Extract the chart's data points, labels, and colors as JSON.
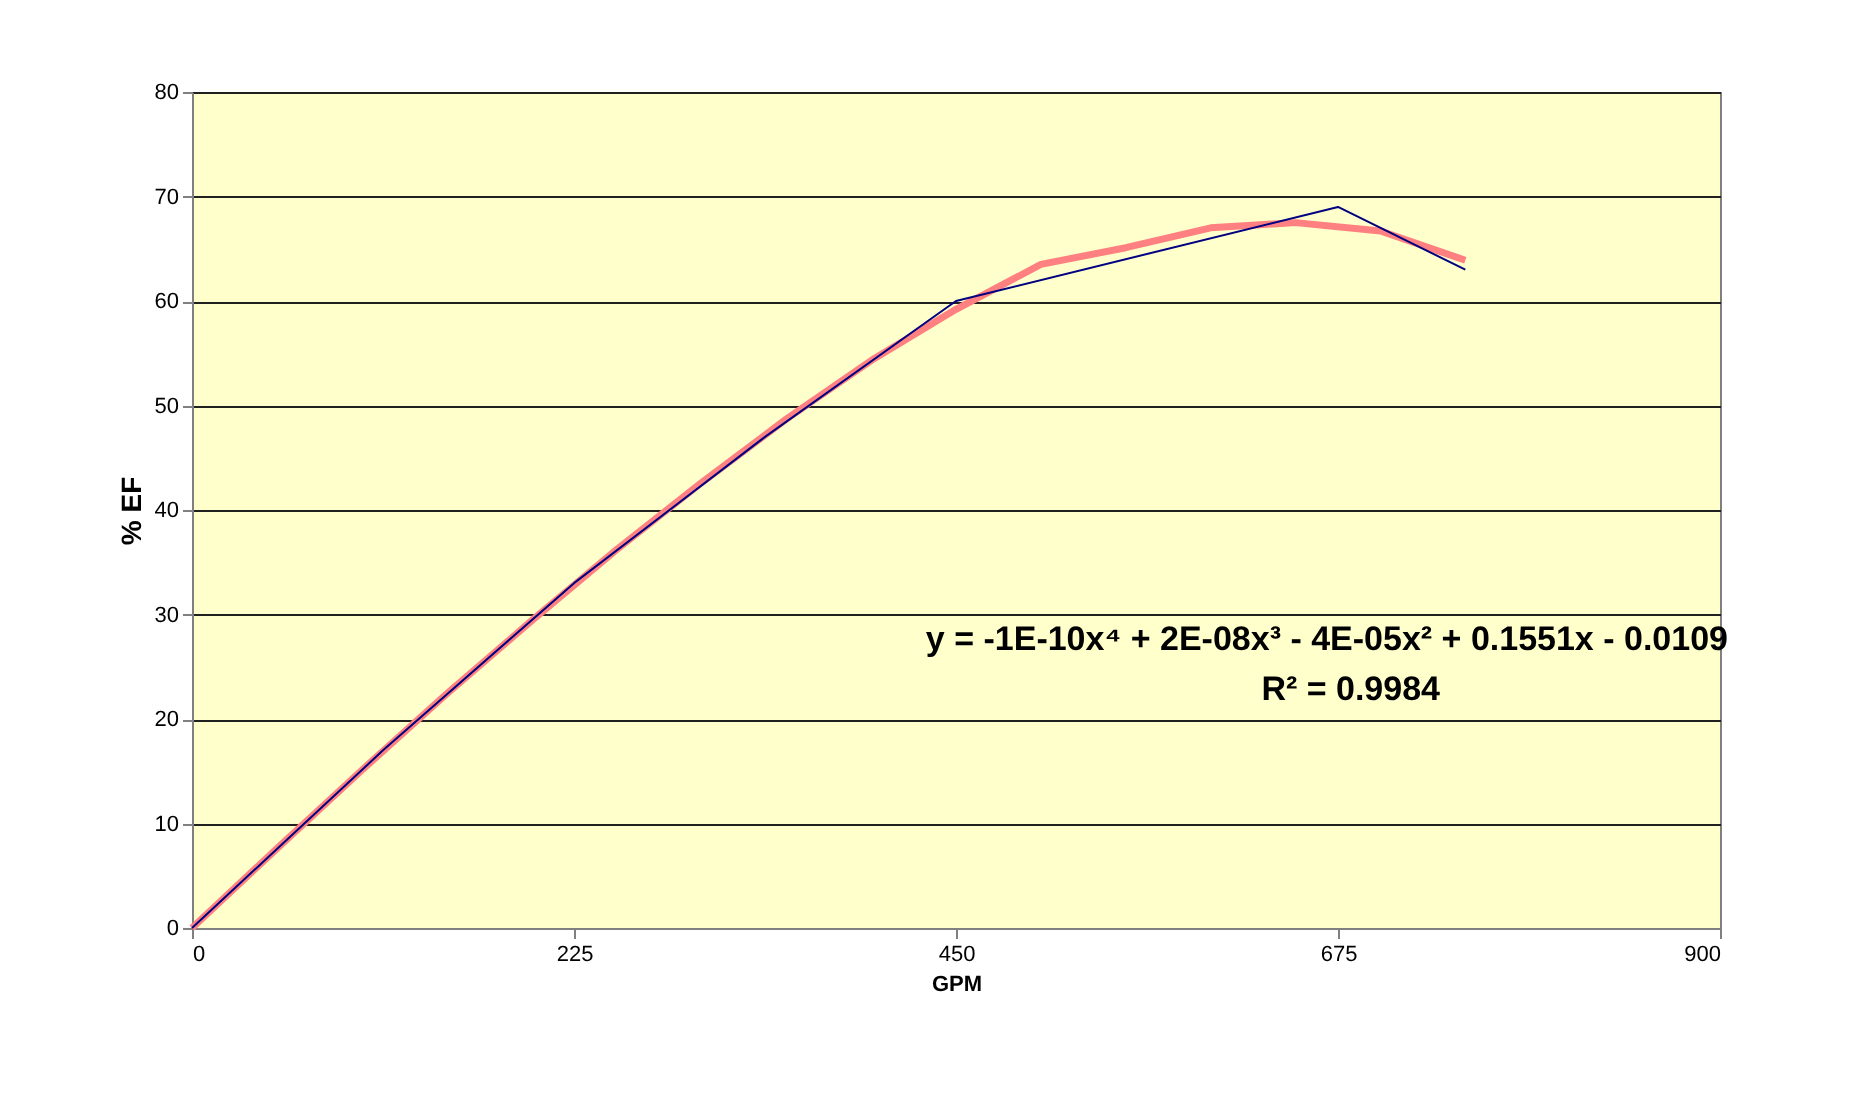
{
  "chart_data": {
    "type": "line",
    "xlabel": "GPM",
    "ylabel": "% EF",
    "xlim": [
      0,
      900
    ],
    "xticks": [
      0,
      225,
      450,
      675,
      900
    ],
    "ylim": [
      0,
      80
    ],
    "yticks": [
      0,
      10,
      20,
      30,
      40,
      50,
      60,
      70,
      80
    ],
    "grid": "y",
    "marker": "none",
    "line_style": "solid",
    "series": [
      {
        "color": "#000080",
        "x": [
          0,
          112.5,
          225,
          337.5,
          450,
          675,
          750
        ],
        "values": [
          0,
          17,
          33,
          47,
          60,
          69,
          63
        ]
      },
      {
        "color": "#ff8080",
        "x": [
          0,
          50,
          100,
          150,
          200,
          250,
          300,
          350,
          400,
          450,
          500,
          550,
          600,
          650,
          700,
          750
        ],
        "values": [
          0,
          7.6,
          15.1,
          22.4,
          29.4,
          36.2,
          42.6,
          48.7,
          54.3,
          59.2,
          63.5,
          65.1,
          67.0,
          67.5,
          66.7,
          63.9
        ]
      }
    ],
    "annotations": [
      "y = -1E-10x⁴ + 2E-08x³ - 4E-05x² + 0.1551x - 0.0109",
      "R² = 0.9984"
    ]
  }
}
